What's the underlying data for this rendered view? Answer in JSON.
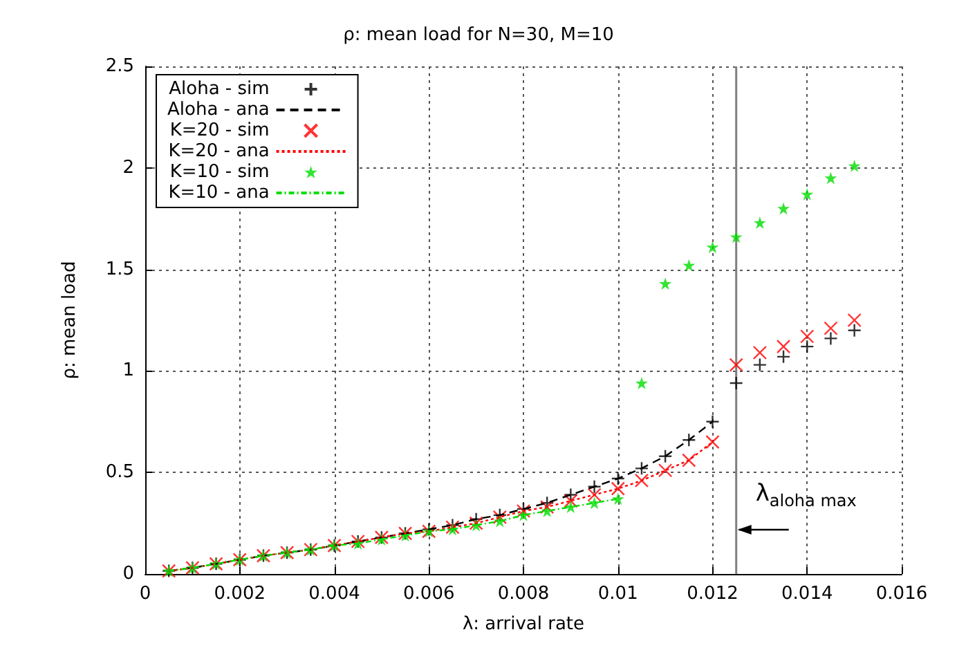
{
  "chart_data": {
    "type": "scatter",
    "title": "ρ: mean load for N=30, M=10",
    "xlabel": "λ: arrival rate",
    "ylabel": "ρ: mean load",
    "xlim": [
      0,
      0.016
    ],
    "xticks": [
      0,
      0.002,
      0.004,
      0.006,
      0.008,
      0.01,
      0.012,
      0.014,
      0.016
    ],
    "ylim": [
      0,
      2.5
    ],
    "yticks": [
      0,
      0.5,
      1,
      1.5,
      2,
      2.5
    ],
    "grid": true,
    "legend": "top left",
    "ref_lines": [
      {
        "axis": "x",
        "value": 0.0125,
        "label": "λ$_{aloha max}$",
        "color": "#808080",
        "line_style": "solid"
      }
    ],
    "series": [
      {
        "name": "Aloha - sim",
        "marker": "plus",
        "color": "#000000",
        "x": [
          0.0005,
          0.001,
          0.0015,
          0.002,
          0.0025,
          0.003,
          0.0035,
          0.004,
          0.0045,
          0.005,
          0.0055,
          0.006,
          0.0065,
          0.007,
          0.0075,
          0.008,
          0.0085,
          0.009,
          0.0095,
          0.01,
          0.0105,
          0.011,
          0.0115,
          0.012,
          0.0125,
          0.013,
          0.0135,
          0.014,
          0.0145,
          0.015
        ],
        "values": [
          0.015,
          0.03,
          0.05,
          0.07,
          0.09,
          0.105,
          0.12,
          0.14,
          0.16,
          0.18,
          0.2,
          0.22,
          0.24,
          0.27,
          0.29,
          0.32,
          0.35,
          0.39,
          0.43,
          0.47,
          0.52,
          0.58,
          0.66,
          0.75,
          0.94,
          1.03,
          1.07,
          1.12,
          1.16,
          1.2
        ]
      },
      {
        "name": "Aloha - ana",
        "type": "line",
        "line_style": "dashed",
        "color": "#000000",
        "x": [
          0.0005,
          0.001,
          0.0015,
          0.002,
          0.0025,
          0.003,
          0.0035,
          0.004,
          0.0045,
          0.005,
          0.0055,
          0.006,
          0.0065,
          0.007,
          0.0075,
          0.008,
          0.0085,
          0.009,
          0.0095,
          0.01,
          0.0105,
          0.011,
          0.0115,
          0.012
        ],
        "values": [
          0.015,
          0.03,
          0.05,
          0.07,
          0.09,
          0.105,
          0.12,
          0.14,
          0.16,
          0.18,
          0.2,
          0.22,
          0.24,
          0.27,
          0.29,
          0.32,
          0.35,
          0.39,
          0.43,
          0.47,
          0.52,
          0.58,
          0.66,
          0.75
        ]
      },
      {
        "name": "K=20 - sim",
        "marker": "cross",
        "color": "#ff0000",
        "x": [
          0.0005,
          0.001,
          0.0015,
          0.002,
          0.0025,
          0.003,
          0.0035,
          0.004,
          0.0045,
          0.005,
          0.0055,
          0.006,
          0.0065,
          0.007,
          0.0075,
          0.008,
          0.0085,
          0.009,
          0.0095,
          0.01,
          0.0105,
          0.011,
          0.0115,
          0.012,
          0.0125,
          0.013,
          0.0135,
          0.014,
          0.0145,
          0.015
        ],
        "values": [
          0.015,
          0.03,
          0.05,
          0.07,
          0.09,
          0.105,
          0.12,
          0.14,
          0.16,
          0.18,
          0.2,
          0.21,
          0.23,
          0.25,
          0.28,
          0.31,
          0.33,
          0.36,
          0.39,
          0.42,
          0.46,
          0.51,
          0.56,
          0.65,
          1.03,
          1.09,
          1.12,
          1.17,
          1.21,
          1.25
        ]
      },
      {
        "name": "K=20 - ana",
        "type": "line",
        "line_style": "dotted",
        "color": "#ff0000",
        "x": [
          0.0005,
          0.001,
          0.0015,
          0.002,
          0.0025,
          0.003,
          0.0035,
          0.004,
          0.0045,
          0.005,
          0.0055,
          0.006,
          0.0065,
          0.007,
          0.0075,
          0.008,
          0.0085,
          0.009,
          0.0095,
          0.01,
          0.0105,
          0.011,
          0.0115,
          0.012
        ],
        "values": [
          0.015,
          0.03,
          0.05,
          0.07,
          0.09,
          0.105,
          0.12,
          0.14,
          0.16,
          0.18,
          0.2,
          0.21,
          0.23,
          0.25,
          0.28,
          0.31,
          0.33,
          0.36,
          0.39,
          0.42,
          0.46,
          0.51,
          0.56,
          0.65
        ]
      },
      {
        "name": "K=10 - sim",
        "marker": "star",
        "color": "#00dd00",
        "x": [
          0.0005,
          0.001,
          0.0015,
          0.002,
          0.0025,
          0.003,
          0.0035,
          0.004,
          0.0045,
          0.005,
          0.0055,
          0.006,
          0.0065,
          0.007,
          0.0075,
          0.008,
          0.0085,
          0.009,
          0.0095,
          0.01,
          0.0105,
          0.011,
          0.0115,
          0.012,
          0.0125,
          0.013,
          0.0135,
          0.014,
          0.0145,
          0.015
        ],
        "values": [
          0.015,
          0.03,
          0.05,
          0.07,
          0.09,
          0.105,
          0.12,
          0.14,
          0.15,
          0.17,
          0.19,
          0.21,
          0.22,
          0.24,
          0.26,
          0.29,
          0.31,
          0.33,
          0.35,
          0.37,
          0.94,
          1.43,
          1.52,
          1.61,
          1.66,
          1.73,
          1.8,
          1.87,
          1.95,
          2.01
        ]
      },
      {
        "name": "K=10 - ana",
        "type": "line",
        "line_style": "dashdot",
        "color": "#00dd00",
        "x": [
          0.0005,
          0.001,
          0.0015,
          0.002,
          0.0025,
          0.003,
          0.0035,
          0.004,
          0.0045,
          0.005,
          0.0055,
          0.006,
          0.0065,
          0.007,
          0.0075,
          0.008,
          0.0085,
          0.009,
          0.0095,
          0.01
        ],
        "values": [
          0.015,
          0.03,
          0.05,
          0.07,
          0.09,
          0.105,
          0.12,
          0.14,
          0.15,
          0.17,
          0.19,
          0.21,
          0.22,
          0.24,
          0.26,
          0.29,
          0.31,
          0.33,
          0.35,
          0.37
        ]
      }
    ]
  }
}
